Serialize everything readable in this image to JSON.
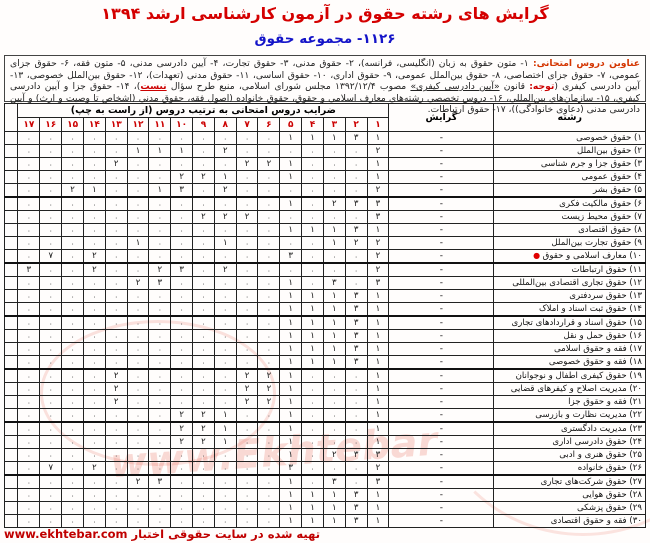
{
  "title": "گرایش های رشته حقوق در آزمون کارشناسی ارشد ۱۳۹۴",
  "subtitle": "۱۱۲۶- مجموعه حقوق",
  "intro_segments": [
    {
      "t": "عناوین دروس امتحانی: ",
      "cls": "lbl"
    },
    {
      "t": "۱- متون حقوق به زبان (انگلیسی، فرانسه)، ۲- حقوق مدنی، ۳- حقوق تجارت، ۴- آیین دادرسی مدنی، ۵- متون فقه، ۶- حقوق جزای عمومی، ۷- حقوق جزای اختصاصی، ۸- حقوق بین‌الملل عمومی، ۹- حقوق اداری، ۱۰- حقوق اساسی، ۱۱- حقوق مدنی (تعهدات)، ۱۲- حقوق بین‌الملل خصوصی، ۱۳- آیین دادرسی کیفری (",
      "cls": ""
    },
    {
      "t": "توجه:",
      "cls": "red"
    },
    {
      "t": " قانون ",
      "cls": ""
    },
    {
      "t": "«آیین دادرسی کیفری»",
      "cls": "u"
    },
    {
      "t": " مصوب ۱۳۹۲/۱۲/۴ مجلس شورای اسلامی، منبع طرح سؤال ",
      "cls": ""
    },
    {
      "t": "نیست",
      "cls": "red u"
    },
    {
      "t": ")، ۱۴- حقوق جزا و آیین دادرسی کیفری، ۱۵- سازمان‌های بین‌المللی، ۱۶- دروس تخصصی رشته‌های معارف اسلامی و حقوق، حقوق خانواده (اصول فقه، حقوق مدنی (اشخاص تا وصیت و ارث) و آیین دادرسی مدنی (دعاوی خانوادگی))، ۱۷- حقوق ارتباطات.",
      "cls": ""
    }
  ],
  "table": {
    "col_field": "رشته",
    "col_orientation": "گرایش",
    "coef_header": "ضرایب دروس امتحانی به ترتیب دروس (از راست به چپ)",
    "course_numbers": [
      "۱",
      "۲",
      "۳",
      "۴",
      "۵",
      "۶",
      "۷",
      "۸",
      "۹",
      "۱۰",
      "۱۱",
      "۱۲",
      "۱۳",
      "۱۴",
      "۱۵",
      "۱۶",
      "۱۷"
    ],
    "orientation_value": "-",
    "group_start_rows": [
      6,
      11,
      15,
      19,
      23,
      27
    ],
    "rows": [
      {
        "name": "۱) حقوق خصوصی",
        "orientation": "-",
        "marked": false,
        "coefs": [
          1,
          3,
          1,
          1,
          1,
          0,
          0,
          0,
          0,
          0,
          0,
          0,
          0,
          0,
          0,
          0,
          0
        ]
      },
      {
        "name": "۲) حقوق بین‌الملل",
        "orientation": "-",
        "marked": false,
        "coefs": [
          2,
          0,
          0,
          0,
          0,
          0,
          0,
          2,
          0,
          1,
          1,
          1,
          0,
          0,
          0,
          0,
          0
        ]
      },
      {
        "name": "۳) حقوق جزا و جرم شناسی",
        "orientation": "-",
        "marked": false,
        "coefs": [
          1,
          0,
          0,
          0,
          1,
          2,
          2,
          0,
          0,
          0,
          0,
          0,
          2,
          0,
          0,
          0,
          0
        ]
      },
      {
        "name": "۴) حقوق عمومی",
        "orientation": "-",
        "marked": false,
        "coefs": [
          1,
          0,
          0,
          0,
          1,
          0,
          0,
          1,
          2,
          2,
          0,
          0,
          0,
          0,
          0,
          0,
          0
        ]
      },
      {
        "name": "۵) حقوق بشر",
        "orientation": "-",
        "marked": false,
        "coefs": [
          2,
          0,
          0,
          0,
          0,
          0,
          0,
          2,
          0,
          3,
          1,
          0,
          0,
          1,
          2,
          0,
          0
        ]
      },
      {
        "name": "۶) حقوق مالکیت فکری",
        "orientation": "-",
        "marked": false,
        "coefs": [
          3,
          3,
          2,
          0,
          1,
          0,
          0,
          0,
          0,
          0,
          0,
          0,
          0,
          0,
          0,
          0,
          0
        ]
      },
      {
        "name": "۷) حقوق محیط زیست",
        "orientation": "-",
        "marked": false,
        "coefs": [
          3,
          0,
          0,
          0,
          0,
          0,
          2,
          2,
          2,
          0,
          0,
          0,
          0,
          0,
          0,
          0,
          0
        ]
      },
      {
        "name": "۸) حقوق اقتصادی",
        "orientation": "-",
        "marked": false,
        "coefs": [
          1,
          3,
          1,
          1,
          1,
          0,
          0,
          0,
          0,
          0,
          0,
          0,
          0,
          0,
          0,
          0,
          0
        ]
      },
      {
        "name": "۹) حقوق تجارت بین‌الملل",
        "orientation": "-",
        "marked": false,
        "coefs": [
          2,
          2,
          1,
          0,
          0,
          0,
          0,
          1,
          0,
          0,
          0,
          1,
          0,
          0,
          0,
          0,
          0
        ]
      },
      {
        "name": "۱۰) معارف اسلامی و حقوق",
        "orientation": "-",
        "marked": true,
        "coefs": [
          2,
          0,
          0,
          0,
          3,
          0,
          0,
          0,
          0,
          0,
          0,
          0,
          0,
          2,
          0,
          7,
          0
        ]
      },
      {
        "name": "۱۱) حقوق ارتباطات",
        "orientation": "-",
        "marked": false,
        "coefs": [
          2,
          0,
          0,
          0,
          0,
          0,
          0,
          2,
          0,
          3,
          2,
          0,
          0,
          2,
          0,
          0,
          3
        ]
      },
      {
        "name": "۱۲) حقوق تجاری اقتصادی بین‌المللی",
        "orientation": "-",
        "marked": false,
        "coefs": [
          3,
          0,
          3,
          0,
          1,
          0,
          0,
          0,
          0,
          0,
          3,
          2,
          0,
          0,
          0,
          0,
          0
        ]
      },
      {
        "name": "۱۳) حقوق سردفتری",
        "orientation": "-",
        "marked": false,
        "coefs": [
          1,
          3,
          1,
          1,
          1,
          0,
          0,
          0,
          0,
          0,
          0,
          0,
          0,
          0,
          0,
          0,
          0
        ]
      },
      {
        "name": "۱۴) حقوق ثبت اسناد و املاک",
        "orientation": "-",
        "marked": false,
        "coefs": [
          1,
          3,
          1,
          1,
          1,
          0,
          0,
          0,
          0,
          0,
          0,
          0,
          0,
          0,
          0,
          0,
          0
        ]
      },
      {
        "name": "۱۵) حقوق اسناد و قراردادهای تجاری",
        "orientation": "-",
        "marked": false,
        "coefs": [
          1,
          3,
          1,
          1,
          1,
          0,
          0,
          0,
          0,
          0,
          0,
          0,
          0,
          0,
          0,
          0,
          0
        ]
      },
      {
        "name": "۱۶) حقوق حمل و نقل",
        "orientation": "-",
        "marked": false,
        "coefs": [
          1,
          3,
          1,
          1,
          1,
          0,
          0,
          0,
          0,
          0,
          0,
          0,
          0,
          0,
          0,
          0,
          0
        ]
      },
      {
        "name": "۱۷) فقه و حقوق اسلامی",
        "orientation": "-",
        "marked": false,
        "coefs": [
          1,
          3,
          1,
          1,
          1,
          0,
          0,
          0,
          0,
          0,
          0,
          0,
          0,
          0,
          0,
          0,
          0
        ]
      },
      {
        "name": "۱۸) فقه و حقوق خصوصی",
        "orientation": "-",
        "marked": false,
        "coefs": [
          1,
          3,
          1,
          1,
          1,
          0,
          0,
          0,
          0,
          0,
          0,
          0,
          0,
          0,
          0,
          0,
          0
        ]
      },
      {
        "name": "۱۹) حقوق کیفری اطفال و نوجوانان",
        "orientation": "-",
        "marked": false,
        "coefs": [
          1,
          0,
          0,
          0,
          1,
          2,
          2,
          0,
          0,
          0,
          0,
          0,
          2,
          0,
          0,
          0,
          0
        ]
      },
      {
        "name": "۲۰) مدیریت اصلاح و کیفرهای قضایی",
        "orientation": "-",
        "marked": false,
        "coefs": [
          1,
          0,
          0,
          0,
          1,
          2,
          2,
          0,
          0,
          0,
          0,
          0,
          2,
          0,
          0,
          0,
          0
        ]
      },
      {
        "name": "۲۱) فقه و حقوق جزا",
        "orientation": "-",
        "marked": false,
        "coefs": [
          1,
          0,
          0,
          0,
          1,
          2,
          2,
          0,
          0,
          0,
          0,
          0,
          2,
          0,
          0,
          0,
          0
        ]
      },
      {
        "name": "۲۲) مدیریت نظارت و بازرسی",
        "orientation": "-",
        "marked": false,
        "coefs": [
          1,
          0,
          0,
          0,
          1,
          0,
          0,
          1,
          2,
          2,
          0,
          0,
          0,
          0,
          0,
          0,
          0
        ]
      },
      {
        "name": "۲۳) مدیریت دادگستری",
        "orientation": "-",
        "marked": false,
        "coefs": [
          1,
          0,
          0,
          0,
          1,
          0,
          0,
          1,
          2,
          2,
          0,
          0,
          0,
          0,
          0,
          0,
          0
        ]
      },
      {
        "name": "۲۴) حقوق دادرسی اداری",
        "orientation": "-",
        "marked": false,
        "coefs": [
          1,
          0,
          0,
          0,
          1,
          0,
          0,
          1,
          2,
          2,
          0,
          0,
          0,
          0,
          0,
          0,
          0
        ]
      },
      {
        "name": "۲۵) حقوق هنری و ادبی",
        "orientation": "-",
        "marked": false,
        "coefs": [
          3,
          3,
          2,
          0,
          1,
          0,
          0,
          0,
          0,
          0,
          0,
          0,
          0,
          0,
          0,
          0,
          0
        ]
      },
      {
        "name": "۲۶) حقوق خانواده",
        "orientation": "-",
        "marked": false,
        "coefs": [
          2,
          0,
          0,
          0,
          3,
          0,
          0,
          0,
          0,
          0,
          0,
          0,
          0,
          2,
          0,
          7,
          0
        ]
      },
      {
        "name": "۲۷) حقوق شرکت‌های تجاری",
        "orientation": "-",
        "marked": false,
        "coefs": [
          3,
          0,
          3,
          0,
          1,
          0,
          0,
          0,
          0,
          0,
          3,
          2,
          0,
          0,
          0,
          0,
          0
        ]
      },
      {
        "name": "۲۸) حقوق هوایی",
        "orientation": "-",
        "marked": false,
        "coefs": [
          1,
          3,
          1,
          1,
          1,
          0,
          0,
          0,
          0,
          0,
          0,
          0,
          0,
          0,
          0,
          0,
          0
        ]
      },
      {
        "name": "۲۹) حقوق پزشکی",
        "orientation": "-",
        "marked": false,
        "coefs": [
          1,
          3,
          1,
          1,
          1,
          0,
          0,
          0,
          0,
          0,
          0,
          0,
          0,
          0,
          0,
          0,
          0
        ]
      },
      {
        "name": "۳۰) فقه و حقوق اقتصادی",
        "orientation": "-",
        "marked": false,
        "coefs": [
          1,
          3,
          1,
          1,
          1,
          0,
          0,
          0,
          0,
          0,
          0,
          0,
          0,
          0,
          0,
          0,
          0
        ]
      }
    ]
  },
  "footer": "تهیه شده در سایت حقوقی اختبار www.ekhtebar.com",
  "watermark_text": "www.Ekhtebar",
  "colors": {
    "title_red": "#d40000",
    "subtitle_blue": "#1414c8",
    "header_numbers_red": "#cc0000",
    "footer_red": "#c00000",
    "marker_red": "#e00000",
    "watermark_red": "rgba(225,75,55,0.2)"
  }
}
